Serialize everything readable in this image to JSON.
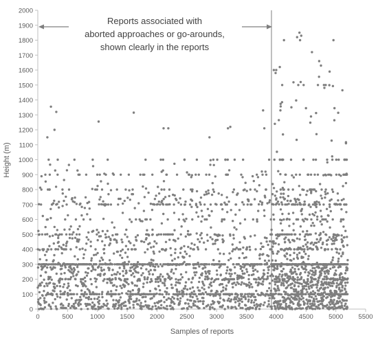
{
  "chart_data": {
    "type": "scatter",
    "title": "",
    "xlabel": "Samples of reports",
    "ylabel": "Height (m)",
    "xlim": [
      0,
      5500
    ],
    "ylim": [
      0,
      2000
    ],
    "x_ticks": [
      0,
      500,
      1000,
      1500,
      2000,
      2500,
      3000,
      3500,
      4000,
      4500,
      5000,
      5500
    ],
    "y_ticks": [
      0,
      100,
      200,
      300,
      400,
      500,
      600,
      700,
      800,
      900,
      1000,
      1100,
      1200,
      1300,
      1400,
      1500,
      1600,
      1700,
      1800,
      1900,
      2000
    ],
    "grid": false,
    "legend": "none",
    "marker_color": "#7f7f7f",
    "axis_color": "#bfbfbf",
    "n_samples": 5200,
    "divider": {
      "x": 3920,
      "label": "Reports associated with aborted approaches or go-arounds, shown clearly in the reports"
    },
    "annotation": {
      "lines": [
        "Reports associated with",
        "aborted approaches or go-arounds,",
        "shown clearly in the reports"
      ]
    },
    "distribution_note": "Dense band 0-500 m across all samples with horizontal bands at 300 m and multiples of 100 m; sparse points up to ~1850 m, higher concentration above 1000 m after x=3920.",
    "outliers": [
      [
        220,
        1355
      ],
      [
        280,
        1200
      ],
      [
        310,
        1320
      ],
      [
        160,
        1150
      ],
      [
        1020,
        1255
      ],
      [
        1610,
        1315
      ],
      [
        3190,
        1210
      ],
      [
        3230,
        1220
      ],
      [
        3780,
        1330
      ],
      [
        3800,
        1210
      ],
      [
        2110,
        1210
      ],
      [
        2190,
        1210
      ],
      [
        2880,
        1150
      ],
      [
        3990,
        1580
      ],
      [
        4000,
        1600
      ],
      [
        4060,
        1620
      ],
      [
        4070,
        1330
      ],
      [
        4100,
        1500
      ],
      [
        4130,
        1800
      ],
      [
        4350,
        1820
      ],
      [
        4390,
        1850
      ],
      [
        4400,
        1800
      ],
      [
        4420,
        1830
      ],
      [
        4370,
        1500
      ],
      [
        4410,
        1520
      ],
      [
        4460,
        1500
      ],
      [
        4600,
        1720
      ],
      [
        4700,
        1500
      ],
      [
        4720,
        1660
      ],
      [
        4750,
        1630
      ],
      [
        4800,
        1500
      ],
      [
        4830,
        1500
      ],
      [
        4960,
        1800
      ],
      [
        5170,
        1110
      ],
      [
        3960,
        1600
      ]
    ]
  }
}
